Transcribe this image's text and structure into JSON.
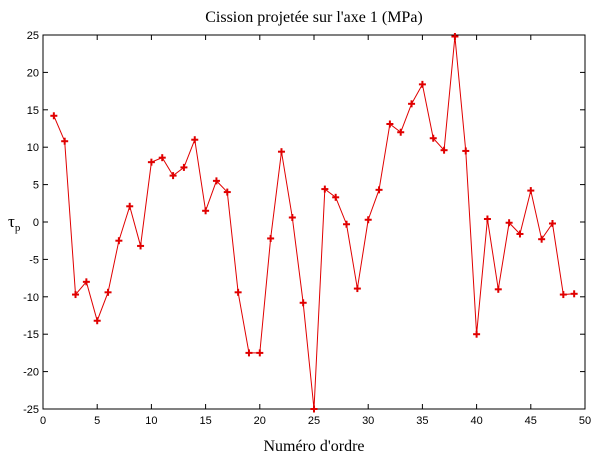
{
  "chart_data": {
    "type": "line",
    "title": "Cission projetée sur l'axe 1 (MPa)",
    "xlabel": "Numéro d'ordre",
    "ylabel": "τ",
    "ylabel_sub": "p",
    "xlim": [
      0,
      50
    ],
    "ylim": [
      -25,
      25
    ],
    "xticks": [
      0,
      5,
      10,
      15,
      20,
      25,
      30,
      35,
      40,
      45,
      50
    ],
    "yticks": [
      -25,
      -20,
      -15,
      -10,
      -5,
      0,
      5,
      10,
      15,
      20,
      25
    ],
    "grid": false,
    "line_color": "#e00000",
    "marker": "+",
    "series": [
      {
        "x": [
          1,
          2,
          3,
          4,
          5,
          6,
          7,
          8,
          9,
          10,
          11,
          12,
          13,
          14,
          15,
          16,
          17,
          18,
          19,
          20,
          21,
          22,
          23,
          24,
          25,
          26,
          27,
          28,
          29,
          30,
          31,
          32,
          33,
          34,
          35,
          36,
          37,
          38,
          39,
          40,
          41,
          42,
          43,
          44,
          45,
          46,
          47,
          48,
          49
        ],
        "values": [
          14.2,
          10.8,
          -9.7,
          -8.0,
          -13.2,
          -9.4,
          -2.5,
          2.1,
          -3.2,
          8.0,
          8.6,
          6.2,
          7.3,
          11.0,
          1.5,
          5.5,
          4.0,
          -9.4,
          -17.5,
          -17.5,
          -2.2,
          9.4,
          0.6,
          -10.8,
          -25.0,
          4.4,
          3.3,
          -0.3,
          -8.9,
          0.3,
          4.3,
          13.1,
          12.0,
          15.8,
          18.4,
          11.2,
          9.6,
          24.8,
          9.5,
          -15.0,
          0.4,
          -9.0,
          -0.1,
          -1.6,
          4.2,
          -2.3,
          -0.2,
          -9.7,
          -9.6
        ]
      }
    ]
  }
}
